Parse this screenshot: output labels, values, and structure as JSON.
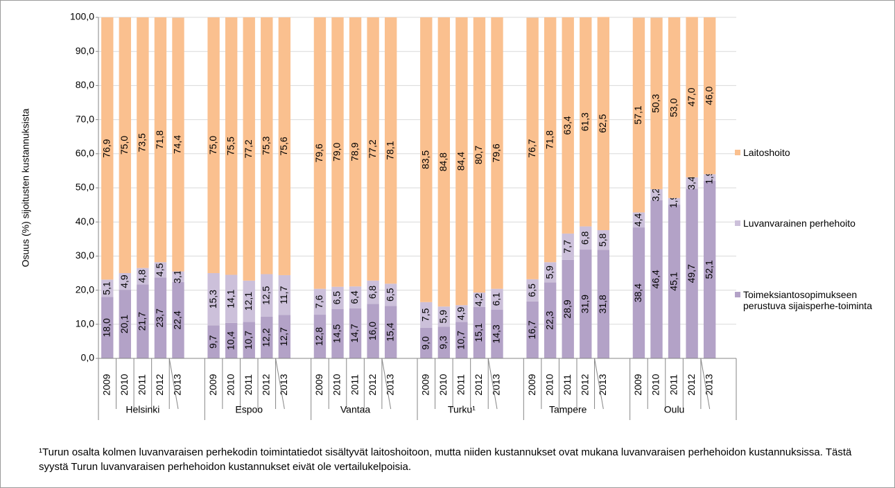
{
  "chart_data": {
    "type": "stacked_bar",
    "y_label": "Osuus (%) sijoitusten kustannuksista",
    "categories": [
      "2009",
      "2010",
      "2011",
      "2012",
      "2013",
      "2009",
      "2010",
      "2011",
      "2012",
      "2013",
      "2009",
      "2010",
      "2011",
      "2012",
      "2013",
      "2009",
      "2010",
      "2011",
      "2012",
      "2013",
      "2009",
      "2010",
      "2011",
      "2012",
      "2013",
      "2009",
      "2010",
      "2011",
      "2012",
      "2013"
    ],
    "groups": [
      "Helsinki",
      "Espoo",
      "Vantaa",
      "Turku¹",
      "Tampere",
      "Oulu"
    ],
    "series": [
      {
        "name": "Toimeksiantosopimukseen perustuva sijaisperhe-toiminta",
        "color": "#b3a2c7",
        "values": [
          18.0,
          20.1,
          21.7,
          23.7,
          22.4,
          9.7,
          10.4,
          10.7,
          12.2,
          12.7,
          12.8,
          14.5,
          14.7,
          16.0,
          15.4,
          9.0,
          9.3,
          10.7,
          15.1,
          14.3,
          16.7,
          22.3,
          28.9,
          31.9,
          31.8,
          38.4,
          46.4,
          45.1,
          49.7,
          52.1
        ],
        "value_labels": [
          "18,0",
          "20,1",
          "21,7",
          "23,7",
          "22,4",
          "9,7",
          "10,4",
          "10,7",
          "12,2",
          "12,7",
          "12,8",
          "14,5",
          "14,7",
          "16,0",
          "15,4",
          "9,0",
          "9,3",
          "10,7",
          "15,1",
          "14,3",
          "16,7",
          "22,3",
          "28,9",
          "31,9",
          "31,8",
          "38,4",
          "46,4",
          "45,1",
          "49,7",
          "52,1"
        ]
      },
      {
        "name": "Luvanvarainen perhehoito",
        "color": "#ccc0da",
        "values": [
          5.1,
          4.9,
          4.8,
          4.5,
          3.1,
          15.3,
          14.1,
          12.1,
          12.5,
          11.7,
          7.6,
          6.5,
          6.4,
          6.8,
          6.5,
          7.5,
          5.9,
          4.9,
          4.2,
          6.1,
          6.5,
          5.9,
          7.7,
          6.8,
          5.8,
          4.4,
          3.2,
          1.9,
          3.4,
          1.9
        ],
        "value_labels": [
          "5,1",
          "4,9",
          "4,8",
          "4,5",
          "3,1",
          "15,3",
          "14,1",
          "12,1",
          "12,5",
          "11,7",
          "7,6",
          "6,5",
          "6,4",
          "6,8",
          "6,5",
          "7,5",
          "5,9",
          "4,9",
          "4,2",
          "6,1",
          "6,5",
          "5,9",
          "7,7",
          "6,8",
          "5,8",
          "4,4",
          "3,2",
          "1,9",
          "3,4",
          "1,9"
        ]
      },
      {
        "name": "Laitoshoito",
        "color": "#fac08f",
        "values": [
          76.9,
          75.0,
          73.5,
          71.8,
          74.4,
          75.0,
          75.5,
          77.2,
          75.3,
          75.6,
          79.6,
          79.0,
          78.9,
          77.2,
          78.1,
          83.5,
          84.8,
          84.4,
          80.7,
          79.6,
          76.7,
          71.8,
          63.4,
          61.3,
          62.5,
          57.1,
          50.3,
          53.0,
          47.0,
          46.0
        ],
        "value_labels": [
          "76,9",
          "75,0",
          "73,5",
          "71,8",
          "74,4",
          "75,0",
          "75,5",
          "77,2",
          "75,3",
          "75,6",
          "79,6",
          "79,0",
          "78,9",
          "77,2",
          "78,1",
          "83,5",
          "84,8",
          "84,4",
          "80,7",
          "79,6",
          "76,7",
          "71,8",
          "63,4",
          "61,3",
          "62,5",
          "57,1",
          "50,3",
          "53,0",
          "47,0",
          "46,0"
        ]
      }
    ],
    "ylim": [
      0,
      100
    ],
    "yticks": [
      {
        "value": 0,
        "label": "0,0"
      },
      {
        "value": 10,
        "label": "10,0"
      },
      {
        "value": 20,
        "label": "20,0"
      },
      {
        "value": 30,
        "label": "30,0"
      },
      {
        "value": 40,
        "label": "40,0"
      },
      {
        "value": 50,
        "label": "50,0"
      },
      {
        "value": 60,
        "label": "60,0"
      },
      {
        "value": 70,
        "label": "70,0"
      },
      {
        "value": 80,
        "label": "80,0"
      },
      {
        "value": 90,
        "label": "90,0"
      },
      {
        "value": 100,
        "label": "100,0"
      }
    ],
    "grid": true,
    "legend": "right",
    "footnote": "¹Turun osalta kolmen luvanvaraisen perhekodin toimintatiedot sisältyvät laitoshoitoon, mutta niiden kustannukset ovat mukana luvanvaraisen perhehoidon kustannuksissa. Tästä syystä Turun luvanvaraisen perhehoidon kustannukset eivät ole vertailukelpoisia."
  }
}
